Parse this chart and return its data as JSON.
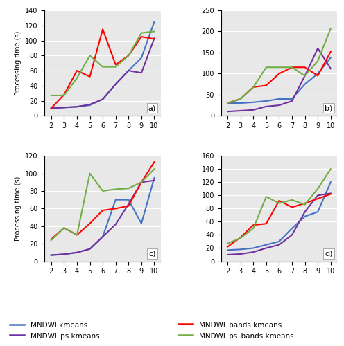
{
  "x": [
    2,
    3,
    4,
    5,
    6,
    7,
    8,
    9,
    10
  ],
  "sa1": {
    "mndwi_kmeans": [
      10,
      11,
      12,
      14,
      22,
      42,
      60,
      77,
      125
    ],
    "mndwi_ps_kmeans": [
      10,
      11,
      12,
      15,
      22,
      42,
      60,
      57,
      103
    ],
    "mndwi_bands_kmeans": [
      10,
      28,
      60,
      52,
      115,
      68,
      80,
      105,
      102
    ],
    "mndwi_ps_bands_kmeans": [
      27,
      27,
      50,
      80,
      65,
      65,
      80,
      110,
      112
    ]
  },
  "sa2": {
    "mndwi_kmeans": [
      30,
      30,
      32,
      35,
      40,
      40,
      75,
      100,
      138
    ],
    "mndwi_ps_kmeans": [
      10,
      12,
      14,
      22,
      25,
      35,
      95,
      160,
      112
    ],
    "mndwi_bands_kmeans": [
      30,
      40,
      68,
      72,
      100,
      115,
      115,
      95,
      152
    ],
    "mndwi_ps_bands_kmeans": [
      30,
      40,
      68,
      115,
      115,
      115,
      95,
      130,
      207
    ]
  },
  "sa3": {
    "mndwi_kmeans": [
      7,
      8,
      10,
      14,
      28,
      70,
      70,
      43,
      95
    ],
    "mndwi_ps_kmeans": [
      7,
      8,
      10,
      14,
      28,
      42,
      65,
      90,
      92
    ],
    "mndwi_bands_kmeans": [
      25,
      38,
      30,
      43,
      58,
      60,
      63,
      90,
      113
    ],
    "mndwi_ps_bands_kmeans": [
      24,
      38,
      30,
      100,
      80,
      82,
      83,
      90,
      105
    ]
  },
  "avg": {
    "mndwi_kmeans": [
      17,
      18,
      20,
      25,
      30,
      50,
      68,
      75,
      120
    ],
    "mndwi_ps_kmeans": [
      10,
      11,
      14,
      20,
      25,
      40,
      75,
      100,
      103
    ],
    "mndwi_bands_kmeans": [
      22,
      36,
      55,
      57,
      92,
      82,
      88,
      95,
      102
    ],
    "mndwi_ps_bands_kmeans": [
      27,
      35,
      50,
      98,
      88,
      93,
      86,
      110,
      140
    ]
  },
  "colors": {
    "mndwi_kmeans": "#4472C4",
    "mndwi_ps_kmeans": "#7030A0",
    "mndwi_bands_kmeans": "#FF0000",
    "mndwi_ps_bands_kmeans": "#70AD47"
  },
  "ylims": {
    "sa1": [
      0,
      140
    ],
    "sa2": [
      0,
      250
    ],
    "sa3": [
      0,
      120
    ],
    "avg": [
      0,
      160
    ]
  },
  "yticks": {
    "sa1": [
      0,
      20,
      40,
      60,
      80,
      100,
      120,
      140
    ],
    "sa2": [
      0,
      50,
      100,
      150,
      200,
      250
    ],
    "sa3": [
      0,
      20,
      40,
      60,
      80,
      100,
      120
    ],
    "avg": [
      0,
      20,
      40,
      60,
      80,
      100,
      120,
      140,
      160
    ]
  },
  "labels": [
    "MNDWI kmeans",
    "MNDWI_ps kmeans",
    "MNDWI_bands kmeans",
    "MNDWI_ps_bands kmeans"
  ],
  "subplot_labels": [
    "a)",
    "b)",
    "c)",
    "d)"
  ],
  "ylabel": "Processing time (s)",
  "linewidth": 1.5,
  "bg_color": "#e8e8e8",
  "grid_color": "#ffffff",
  "tick_fontsize": 7,
  "ylabel_fontsize": 7,
  "legend_fontsize": 7.5
}
